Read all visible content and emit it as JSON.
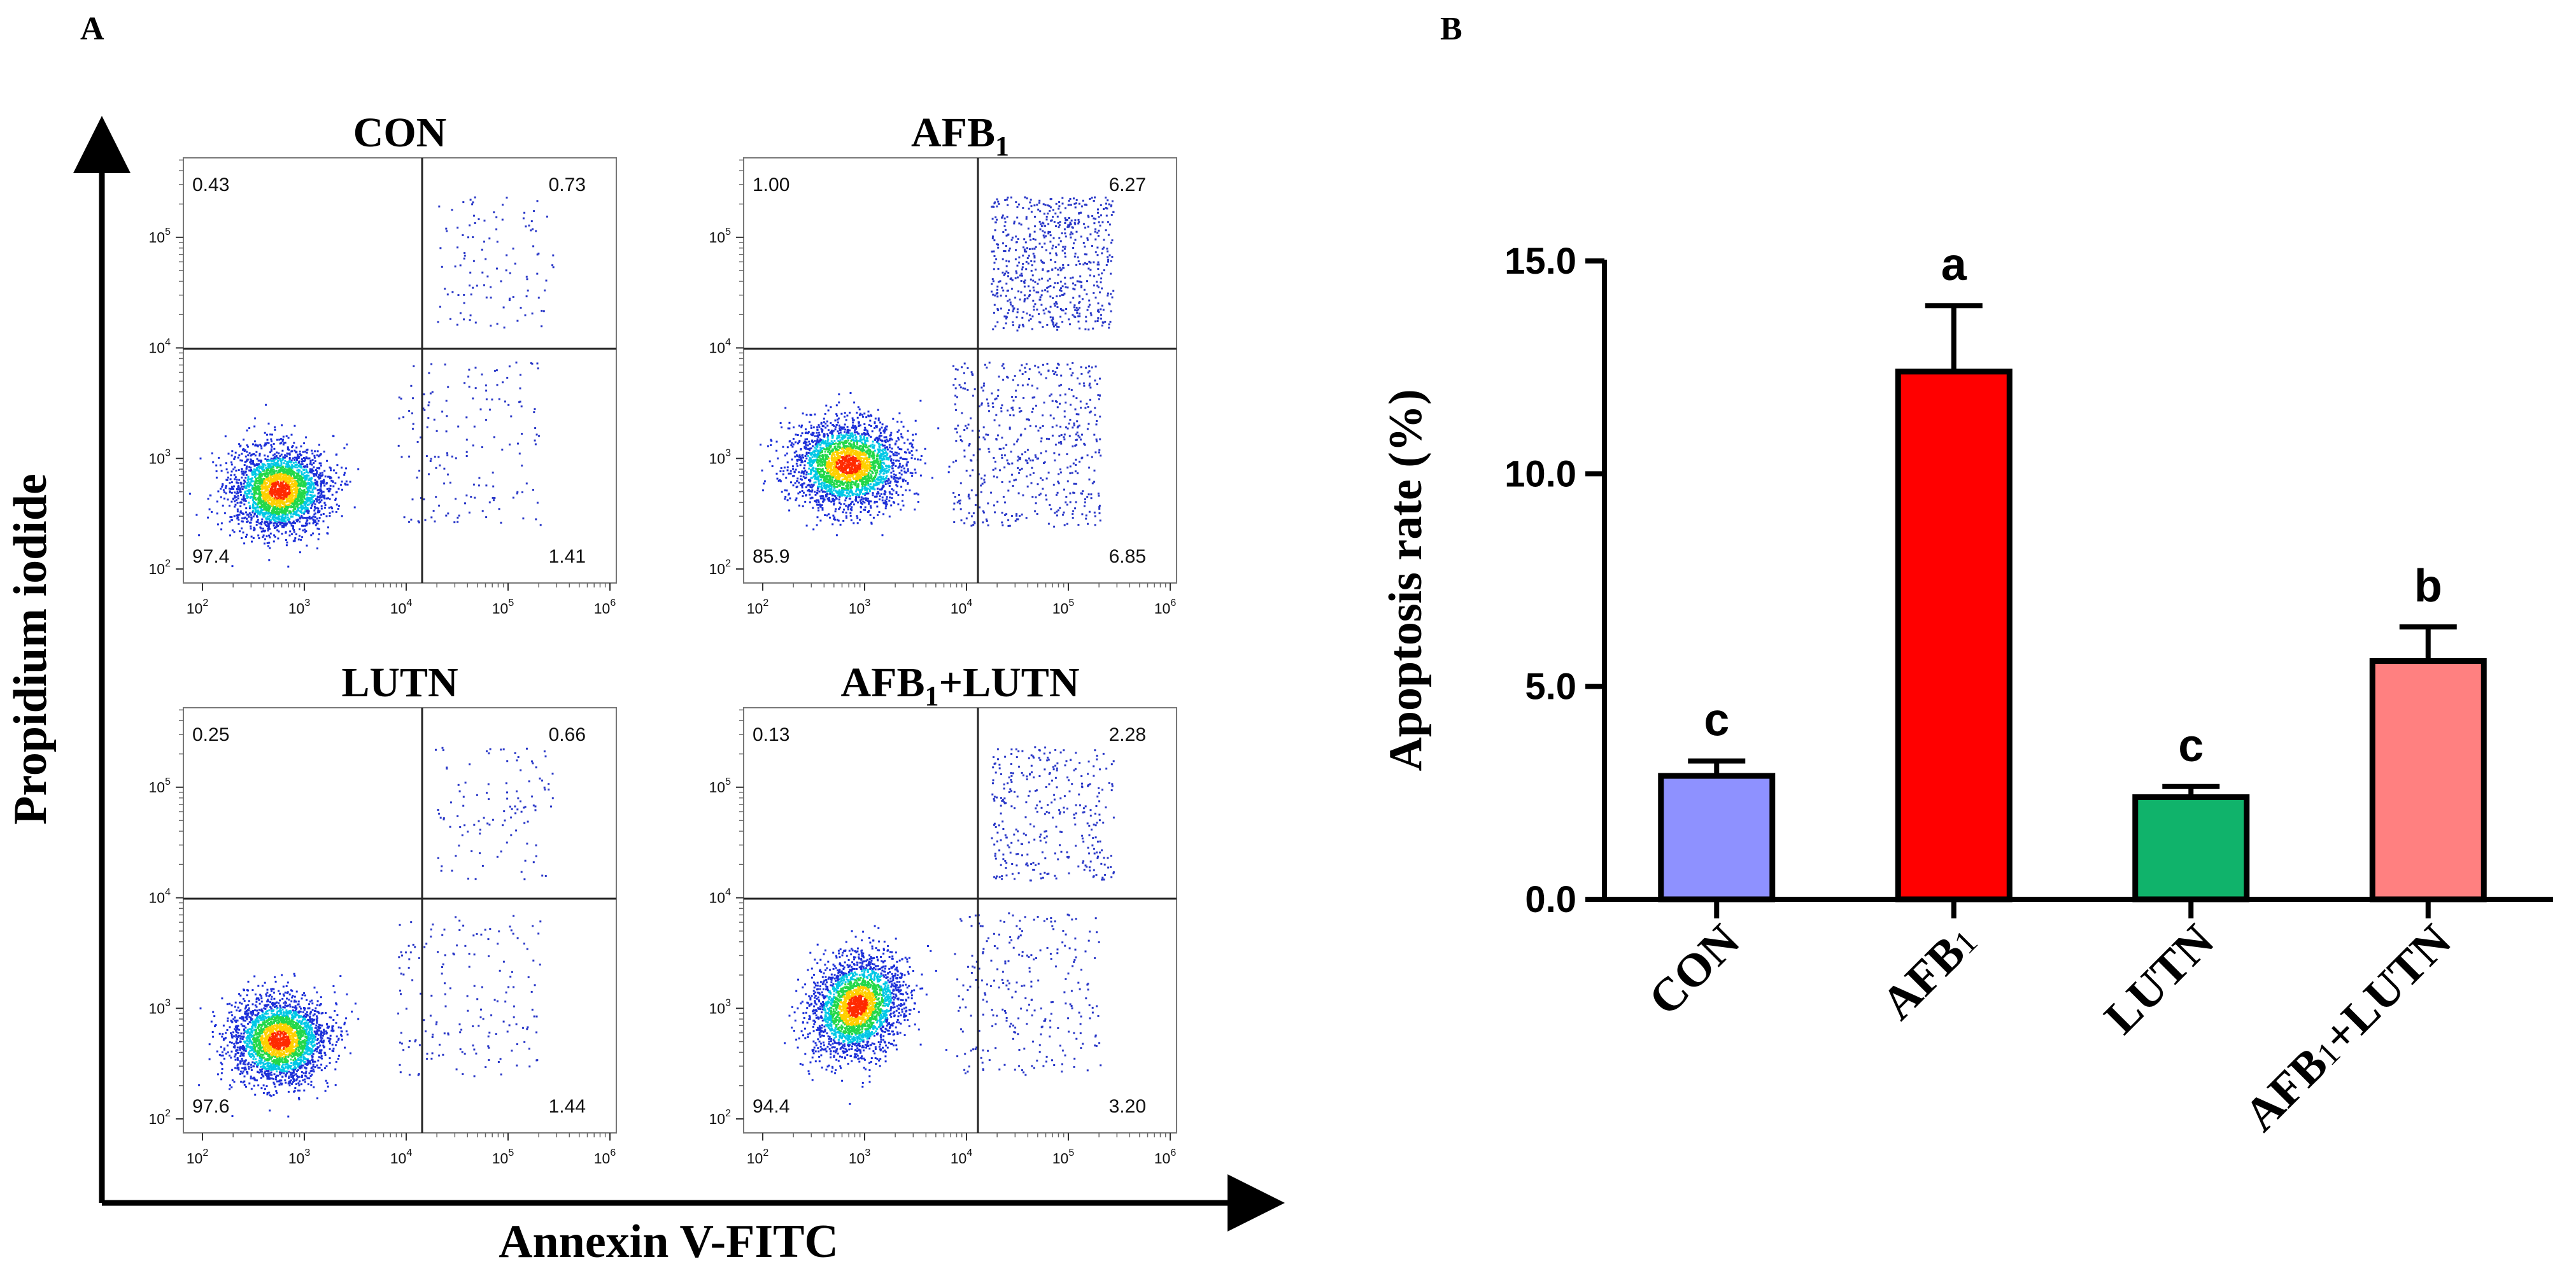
{
  "panels": {
    "a_label": "A",
    "b_label": "B"
  },
  "flow": {
    "x_axis_title": "Annexin V-FITC",
    "y_axis_title": "Propidium iodide",
    "x_ticks": [
      {
        "base": "10",
        "exp": "2"
      },
      {
        "base": "10",
        "exp": "3"
      },
      {
        "base": "10",
        "exp": "4"
      },
      {
        "base": "10",
        "exp": "5"
      },
      {
        "base": "10",
        "exp": "6"
      }
    ],
    "y_ticks": [
      {
        "base": "10",
        "exp": "2"
      },
      {
        "base": "10",
        "exp": "3"
      },
      {
        "base": "10",
        "exp": "4"
      },
      {
        "base": "10",
        "exp": "5"
      }
    ],
    "plots": [
      {
        "title_main": "CON",
        "title_sub": "",
        "title_rest": "",
        "ul": "0.43",
        "ur": "0.73",
        "ll": "97.4",
        "lr": "1.41"
      },
      {
        "title_main": "AFB",
        "title_sub": "1",
        "title_rest": "",
        "ul": "1.00",
        "ur": "6.27",
        "ll": "85.9",
        "lr": "6.85"
      },
      {
        "title_main": "LUTN",
        "title_sub": "",
        "title_rest": "",
        "ul": "0.25",
        "ur": "0.66",
        "ll": "97.6",
        "lr": "1.44"
      },
      {
        "title_main": "AFB",
        "title_sub": "1",
        "title_rest": "+LUTN",
        "ul": "0.13",
        "ur": "2.28",
        "ll": "94.4",
        "lr": "3.20"
      }
    ]
  },
  "chart_data": {
    "type": "bar",
    "title": "",
    "xlabel": "",
    "ylabel": "Apoptosis rate (%)",
    "ylim": [
      0,
      15
    ],
    "yticks": [
      "0.0",
      "5.0",
      "10.0",
      "15.0"
    ],
    "categories": [
      {
        "main": "CON",
        "sub": "",
        "rest": ""
      },
      {
        "main": "AFB",
        "sub": "1",
        "rest": ""
      },
      {
        "main": "LUTN",
        "sub": "",
        "rest": ""
      },
      {
        "main": "AFB",
        "sub": "1",
        "rest": "+LUTN"
      }
    ],
    "values": [
      2.9,
      12.4,
      2.4,
      5.6
    ],
    "errors": [
      0.35,
      1.55,
      0.25,
      0.8
    ],
    "significance": [
      "c",
      "a",
      "c",
      "b"
    ],
    "colors": [
      "#8e91ff",
      "#ff0000",
      "#10b36b",
      "#ff8080"
    ]
  }
}
